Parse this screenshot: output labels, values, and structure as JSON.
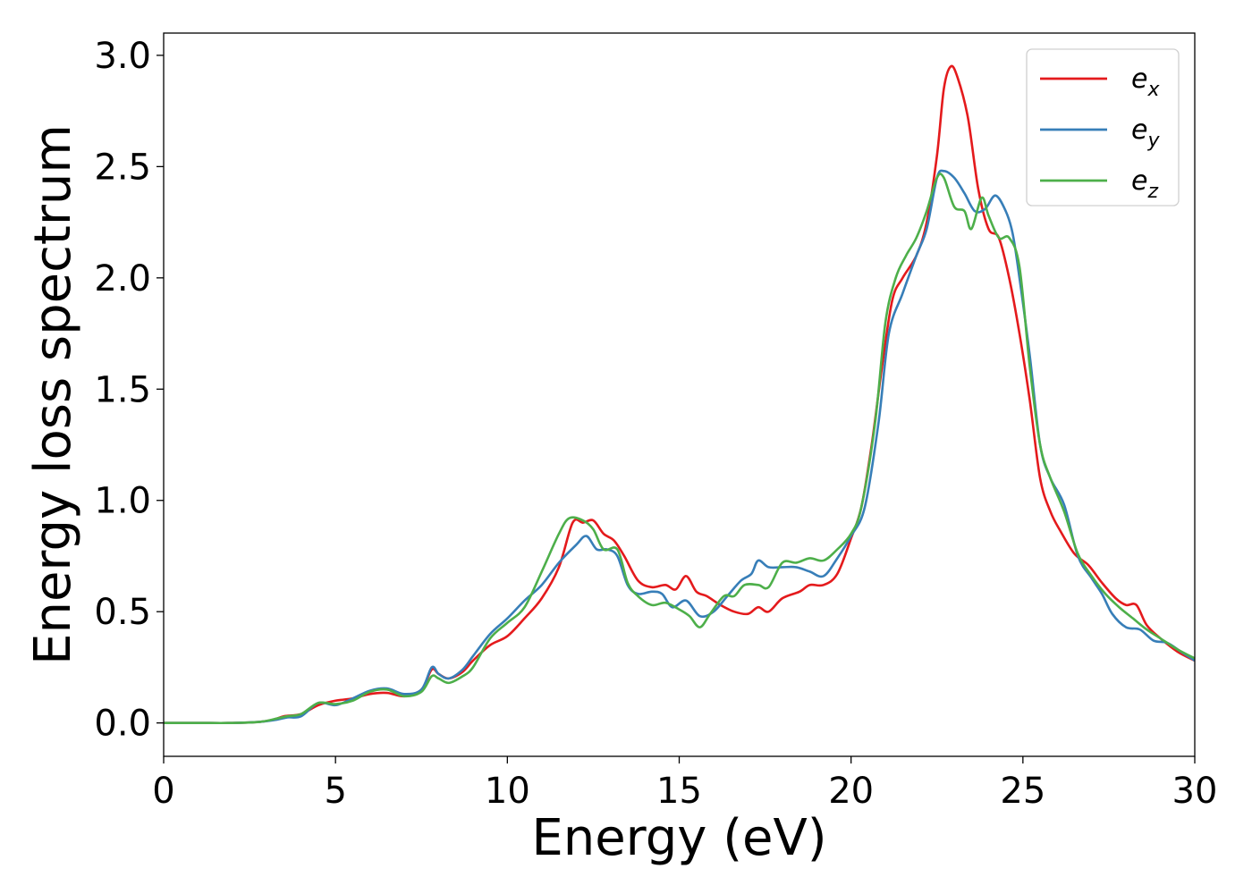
{
  "chart_data": {
    "type": "line",
    "title": "",
    "xlabel": "Energy (eV)",
    "ylabel": "Energy loss spectrum",
    "xlim": [
      0,
      30
    ],
    "ylim": [
      -0.15,
      3.1
    ],
    "xticks": [
      "0",
      "5",
      "10",
      "15",
      "20",
      "25",
      "30"
    ],
    "yticks": [
      "0.0",
      "0.5",
      "1.0",
      "1.5",
      "2.0",
      "2.5",
      "3.0"
    ],
    "grid": false,
    "legend_position": "top-right",
    "series": [
      {
        "name": "e",
        "subscript": "x",
        "color": "#e41a1c",
        "points": [
          [
            0,
            0.0
          ],
          [
            1,
            0.0
          ],
          [
            2,
            0.0
          ],
          [
            2.8,
            0.005
          ],
          [
            3.2,
            0.015
          ],
          [
            3.5,
            0.03
          ],
          [
            4,
            0.04
          ],
          [
            4.5,
            0.08
          ],
          [
            5,
            0.1
          ],
          [
            5.5,
            0.11
          ],
          [
            6,
            0.13
          ],
          [
            6.5,
            0.135
          ],
          [
            7,
            0.12
          ],
          [
            7.5,
            0.15
          ],
          [
            7.8,
            0.24
          ],
          [
            8,
            0.22
          ],
          [
            8.3,
            0.2
          ],
          [
            8.7,
            0.23
          ],
          [
            9,
            0.28
          ],
          [
            9.5,
            0.35
          ],
          [
            10,
            0.39
          ],
          [
            10.5,
            0.47
          ],
          [
            11,
            0.56
          ],
          [
            11.5,
            0.7
          ],
          [
            11.9,
            0.9
          ],
          [
            12.2,
            0.9
          ],
          [
            12.5,
            0.91
          ],
          [
            12.8,
            0.85
          ],
          [
            13.1,
            0.82
          ],
          [
            13.4,
            0.75
          ],
          [
            13.8,
            0.64
          ],
          [
            14.2,
            0.61
          ],
          [
            14.6,
            0.62
          ],
          [
            14.9,
            0.6
          ],
          [
            15.2,
            0.66
          ],
          [
            15.5,
            0.59
          ],
          [
            15.8,
            0.57
          ],
          [
            16.2,
            0.53
          ],
          [
            16.6,
            0.5
          ],
          [
            17,
            0.49
          ],
          [
            17.3,
            0.52
          ],
          [
            17.6,
            0.5
          ],
          [
            18,
            0.56
          ],
          [
            18.5,
            0.59
          ],
          [
            18.8,
            0.62
          ],
          [
            19.2,
            0.62
          ],
          [
            19.6,
            0.67
          ],
          [
            20,
            0.83
          ],
          [
            20.3,
            0.97
          ],
          [
            20.6,
            1.25
          ],
          [
            20.9,
            1.6
          ],
          [
            21.2,
            1.9
          ],
          [
            21.5,
            2.0
          ],
          [
            21.9,
            2.1
          ],
          [
            22.2,
            2.25
          ],
          [
            22.5,
            2.55
          ],
          [
            22.7,
            2.85
          ],
          [
            22.9,
            2.95
          ],
          [
            23.1,
            2.9
          ],
          [
            23.4,
            2.72
          ],
          [
            23.7,
            2.4
          ],
          [
            24,
            2.22
          ],
          [
            24.3,
            2.18
          ],
          [
            24.6,
            2.0
          ],
          [
            24.9,
            1.75
          ],
          [
            25.2,
            1.45
          ],
          [
            25.5,
            1.1
          ],
          [
            25.8,
            0.95
          ],
          [
            26.1,
            0.86
          ],
          [
            26.5,
            0.76
          ],
          [
            26.9,
            0.71
          ],
          [
            27.3,
            0.63
          ],
          [
            27.7,
            0.56
          ],
          [
            28,
            0.53
          ],
          [
            28.3,
            0.53
          ],
          [
            28.6,
            0.44
          ],
          [
            29,
            0.38
          ],
          [
            29.5,
            0.32
          ],
          [
            30,
            0.28
          ]
        ]
      },
      {
        "name": "e",
        "subscript": "y",
        "color": "#377eb8",
        "points": [
          [
            0,
            0.0
          ],
          [
            1,
            0.0
          ],
          [
            2,
            0.0
          ],
          [
            2.8,
            0.005
          ],
          [
            3.3,
            0.015
          ],
          [
            3.6,
            0.025
          ],
          [
            4,
            0.03
          ],
          [
            4.5,
            0.09
          ],
          [
            5,
            0.08
          ],
          [
            5.5,
            0.11
          ],
          [
            6,
            0.145
          ],
          [
            6.5,
            0.155
          ],
          [
            7,
            0.13
          ],
          [
            7.5,
            0.15
          ],
          [
            7.8,
            0.25
          ],
          [
            8,
            0.22
          ],
          [
            8.3,
            0.2
          ],
          [
            8.7,
            0.24
          ],
          [
            9,
            0.3
          ],
          [
            9.5,
            0.4
          ],
          [
            10,
            0.47
          ],
          [
            10.5,
            0.55
          ],
          [
            11,
            0.62
          ],
          [
            11.5,
            0.72
          ],
          [
            12,
            0.8
          ],
          [
            12.3,
            0.84
          ],
          [
            12.6,
            0.78
          ],
          [
            12.9,
            0.78
          ],
          [
            13.2,
            0.75
          ],
          [
            13.5,
            0.62
          ],
          [
            13.8,
            0.58
          ],
          [
            14.2,
            0.59
          ],
          [
            14.5,
            0.58
          ],
          [
            14.8,
            0.52
          ],
          [
            15.2,
            0.55
          ],
          [
            15.6,
            0.48
          ],
          [
            16,
            0.5
          ],
          [
            16.4,
            0.57
          ],
          [
            16.8,
            0.64
          ],
          [
            17.1,
            0.67
          ],
          [
            17.3,
            0.73
          ],
          [
            17.6,
            0.7
          ],
          [
            18,
            0.7
          ],
          [
            18.4,
            0.7
          ],
          [
            18.8,
            0.68
          ],
          [
            19.2,
            0.66
          ],
          [
            19.6,
            0.74
          ],
          [
            20,
            0.84
          ],
          [
            20.4,
            0.97
          ],
          [
            20.8,
            1.35
          ],
          [
            21.1,
            1.75
          ],
          [
            21.5,
            1.93
          ],
          [
            21.9,
            2.1
          ],
          [
            22.2,
            2.22
          ],
          [
            22.5,
            2.45
          ],
          [
            22.7,
            2.48
          ],
          [
            23,
            2.45
          ],
          [
            23.3,
            2.38
          ],
          [
            23.6,
            2.3
          ],
          [
            23.9,
            2.31
          ],
          [
            24.2,
            2.37
          ],
          [
            24.5,
            2.3
          ],
          [
            24.7,
            2.2
          ],
          [
            24.9,
            2.0
          ],
          [
            25.2,
            1.65
          ],
          [
            25.5,
            1.25
          ],
          [
            25.8,
            1.1
          ],
          [
            26.2,
            0.98
          ],
          [
            26.6,
            0.75
          ],
          [
            27,
            0.65
          ],
          [
            27.3,
            0.58
          ],
          [
            27.6,
            0.49
          ],
          [
            28,
            0.43
          ],
          [
            28.4,
            0.42
          ],
          [
            28.8,
            0.37
          ],
          [
            29.2,
            0.36
          ],
          [
            29.6,
            0.32
          ],
          [
            30,
            0.28
          ]
        ]
      },
      {
        "name": "e",
        "subscript": "z",
        "color": "#4daf4a",
        "points": [
          [
            0,
            0.0
          ],
          [
            1,
            0.0
          ],
          [
            2,
            0.0
          ],
          [
            2.8,
            0.005
          ],
          [
            3.3,
            0.02
          ],
          [
            3.6,
            0.03
          ],
          [
            4,
            0.04
          ],
          [
            4.5,
            0.09
          ],
          [
            5,
            0.085
          ],
          [
            5.5,
            0.1
          ],
          [
            6,
            0.14
          ],
          [
            6.5,
            0.15
          ],
          [
            7,
            0.12
          ],
          [
            7.5,
            0.14
          ],
          [
            7.8,
            0.21
          ],
          [
            8,
            0.2
          ],
          [
            8.3,
            0.18
          ],
          [
            8.7,
            0.21
          ],
          [
            9,
            0.25
          ],
          [
            9.5,
            0.38
          ],
          [
            10,
            0.45
          ],
          [
            10.5,
            0.52
          ],
          [
            11,
            0.68
          ],
          [
            11.5,
            0.85
          ],
          [
            11.8,
            0.92
          ],
          [
            12.2,
            0.91
          ],
          [
            12.5,
            0.87
          ],
          [
            12.8,
            0.78
          ],
          [
            13.2,
            0.78
          ],
          [
            13.5,
            0.63
          ],
          [
            13.8,
            0.57
          ],
          [
            14.2,
            0.53
          ],
          [
            14.6,
            0.54
          ],
          [
            15,
            0.51
          ],
          [
            15.3,
            0.48
          ],
          [
            15.6,
            0.43
          ],
          [
            15.9,
            0.49
          ],
          [
            16.3,
            0.57
          ],
          [
            16.6,
            0.57
          ],
          [
            16.9,
            0.62
          ],
          [
            17.3,
            0.62
          ],
          [
            17.6,
            0.61
          ],
          [
            18,
            0.72
          ],
          [
            18.4,
            0.72
          ],
          [
            18.8,
            0.74
          ],
          [
            19.2,
            0.73
          ],
          [
            19.6,
            0.78
          ],
          [
            20,
            0.85
          ],
          [
            20.3,
            0.97
          ],
          [
            20.7,
            1.35
          ],
          [
            21,
            1.8
          ],
          [
            21.3,
            2.0
          ],
          [
            21.6,
            2.1
          ],
          [
            21.9,
            2.18
          ],
          [
            22.2,
            2.3
          ],
          [
            22.5,
            2.45
          ],
          [
            22.7,
            2.45
          ],
          [
            23,
            2.32
          ],
          [
            23.3,
            2.3
          ],
          [
            23.5,
            2.22
          ],
          [
            23.8,
            2.36
          ],
          [
            24,
            2.28
          ],
          [
            24.3,
            2.18
          ],
          [
            24.6,
            2.18
          ],
          [
            24.9,
            2.05
          ],
          [
            25.2,
            1.6
          ],
          [
            25.5,
            1.25
          ],
          [
            25.8,
            1.1
          ],
          [
            26.2,
            0.95
          ],
          [
            26.6,
            0.76
          ],
          [
            27,
            0.66
          ],
          [
            27.4,
            0.58
          ],
          [
            27.8,
            0.52
          ],
          [
            28.2,
            0.47
          ],
          [
            28.6,
            0.42
          ],
          [
            29,
            0.38
          ],
          [
            29.5,
            0.33
          ],
          [
            30,
            0.29
          ]
        ]
      }
    ]
  }
}
